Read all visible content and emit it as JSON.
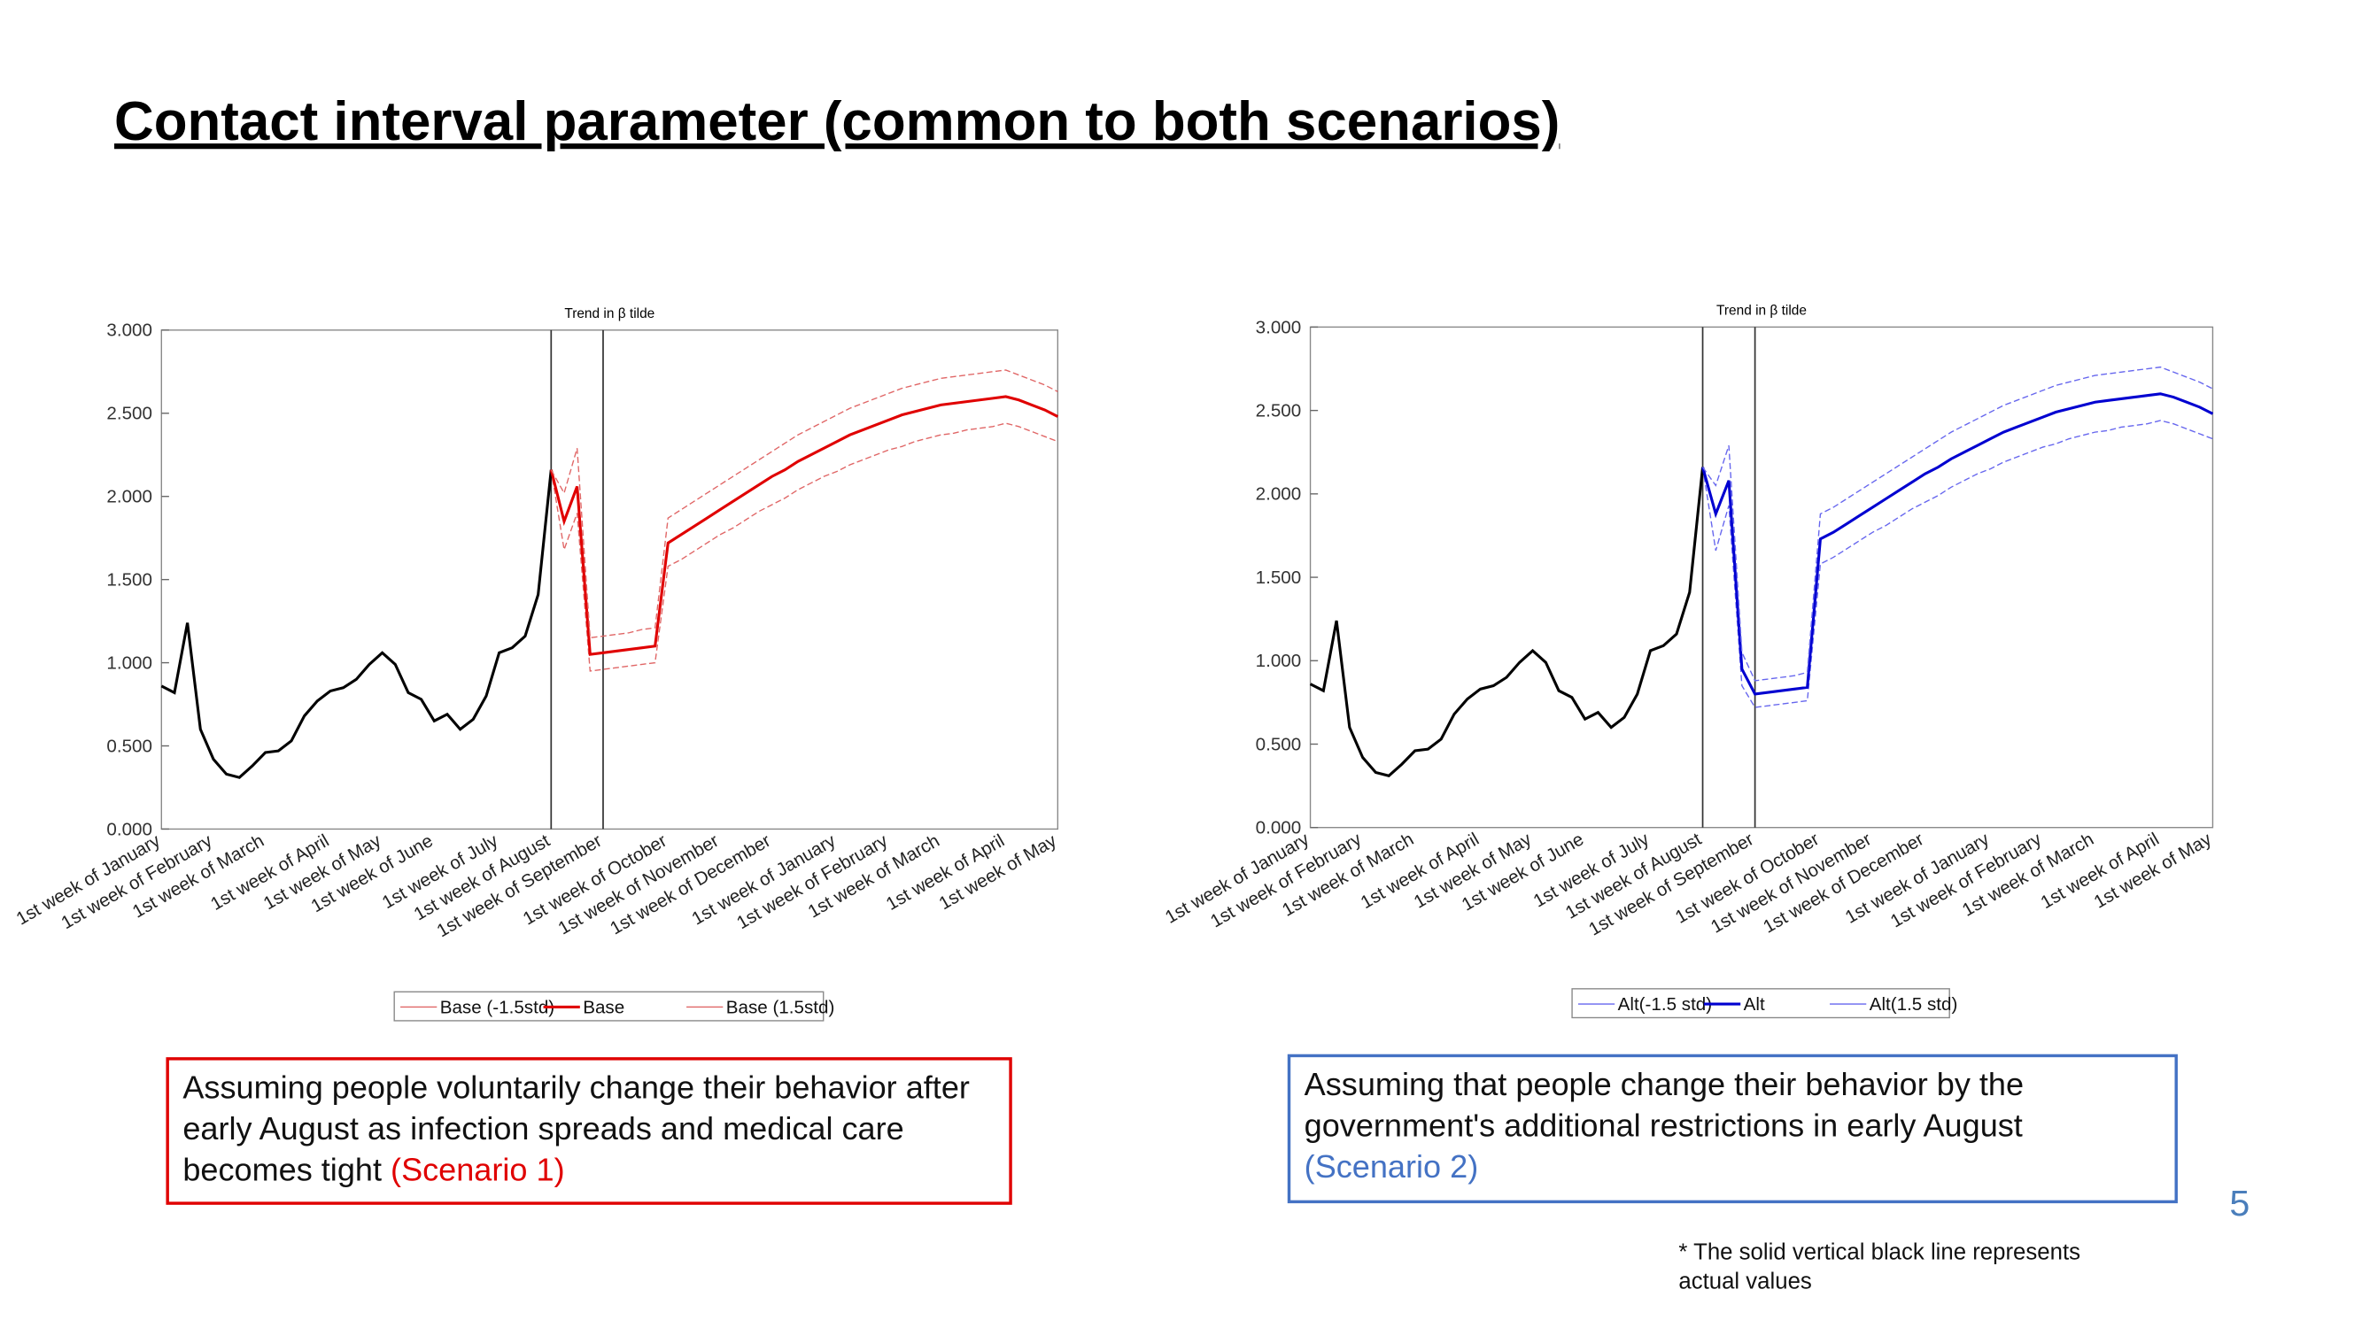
{
  "slide_title": "Contact interval parameter (common to both scenarios)",
  "chart_data": [
    {
      "type": "line",
      "title": "Trend in β tilde",
      "categories": [
        "1st week of January",
        null,
        null,
        null,
        "1st week of February",
        null,
        null,
        null,
        "1st week of March",
        null,
        null,
        null,
        null,
        "1st week of April",
        null,
        null,
        null,
        "1st week of May",
        null,
        null,
        null,
        "1st week of June",
        null,
        null,
        null,
        null,
        "1st week of July",
        null,
        null,
        null,
        "1st week of August",
        null,
        null,
        null,
        "1st week of September",
        null,
        null,
        null,
        null,
        "1st week of October",
        null,
        null,
        null,
        "1st week of November",
        null,
        null,
        null,
        "1st week of December",
        null,
        null,
        null,
        null,
        "1st week of January",
        null,
        null,
        null,
        "1st week of February",
        null,
        null,
        null,
        "1st week of March",
        null,
        null,
        null,
        null,
        "1st week of April",
        null,
        null,
        null,
        "1st week of May"
      ],
      "ylim": [
        0,
        3
      ],
      "yticks": [
        {
          "value": 0,
          "label": "0.000"
        },
        {
          "value": 0.5,
          "label": "0.500"
        },
        {
          "value": 1,
          "label": "1.000"
        },
        {
          "value": 1.5,
          "label": "1.500"
        },
        {
          "value": 2,
          "label": "2.000"
        },
        {
          "value": 2.5,
          "label": "2.500"
        },
        {
          "value": 3,
          "label": "3.000"
        }
      ],
      "vlines": [
        30,
        34
      ],
      "series": [
        {
          "color": "#000000",
          "line_style": "solid",
          "values": [
            0.86,
            0.82,
            1.24,
            0.6,
            0.42,
            0.33,
            0.31,
            0.38,
            0.46,
            0.47,
            0.53,
            0.68,
            0.77,
            0.83,
            0.85,
            0.9,
            0.99,
            1.06,
            0.99,
            0.82,
            0.78,
            0.65,
            0.69,
            0.6,
            0.66,
            0.8,
            1.06,
            1.09,
            1.16,
            1.41,
            2.16,
            null,
            null,
            null,
            null,
            null,
            null,
            null,
            null,
            null,
            null,
            null,
            null,
            null,
            null,
            null,
            null,
            null,
            null,
            null,
            null,
            null,
            null,
            null,
            null,
            null,
            null,
            null,
            null,
            null,
            null,
            null,
            null,
            null,
            null,
            null,
            null,
            null,
            null,
            null
          ]
        },
        {
          "name": "Base (-1.5std)",
          "color": "#e06666",
          "line_style": "dashed",
          "values": [
            null,
            null,
            null,
            null,
            null,
            null,
            null,
            null,
            null,
            null,
            null,
            null,
            null,
            null,
            null,
            null,
            null,
            null,
            null,
            null,
            null,
            null,
            null,
            null,
            null,
            null,
            null,
            null,
            null,
            null,
            2.16,
            1.68,
            1.9,
            0.95,
            0.96,
            0.97,
            0.98,
            0.99,
            1.0,
            1.58,
            1.62,
            1.67,
            1.72,
            1.77,
            1.81,
            1.86,
            1.91,
            1.95,
            1.99,
            2.04,
            2.08,
            2.12,
            2.15,
            2.19,
            2.22,
            2.25,
            2.28,
            2.3,
            2.33,
            2.35,
            2.37,
            2.38,
            2.4,
            2.41,
            2.42,
            2.44,
            2.42,
            2.39,
            2.36,
            2.33
          ]
        },
        {
          "name": "Base",
          "color": "#e00000",
          "line_style": "solid",
          "values": [
            null,
            null,
            null,
            null,
            null,
            null,
            null,
            null,
            null,
            null,
            null,
            null,
            null,
            null,
            null,
            null,
            null,
            null,
            null,
            null,
            null,
            null,
            null,
            null,
            null,
            null,
            null,
            null,
            null,
            null,
            2.16,
            1.85,
            2.06,
            1.05,
            1.06,
            1.07,
            1.08,
            1.09,
            1.1,
            1.72,
            1.77,
            1.82,
            1.87,
            1.92,
            1.97,
            2.02,
            2.07,
            2.12,
            2.16,
            2.21,
            2.25,
            2.29,
            2.33,
            2.37,
            2.4,
            2.43,
            2.46,
            2.49,
            2.51,
            2.53,
            2.55,
            2.56,
            2.57,
            2.58,
            2.59,
            2.6,
            2.58,
            2.55,
            2.52,
            2.48
          ]
        },
        {
          "name": "Base (1.5std)",
          "color": "#e06666",
          "line_style": "dashed",
          "values": [
            null,
            null,
            null,
            null,
            null,
            null,
            null,
            null,
            null,
            null,
            null,
            null,
            null,
            null,
            null,
            null,
            null,
            null,
            null,
            null,
            null,
            null,
            null,
            null,
            null,
            null,
            null,
            null,
            null,
            null,
            2.16,
            2.02,
            2.29,
            1.15,
            1.16,
            1.17,
            1.18,
            1.2,
            1.21,
            1.87,
            1.92,
            1.97,
            2.02,
            2.07,
            2.12,
            2.17,
            2.22,
            2.27,
            2.32,
            2.37,
            2.41,
            2.45,
            2.49,
            2.53,
            2.56,
            2.59,
            2.62,
            2.65,
            2.67,
            2.69,
            2.71,
            2.72,
            2.73,
            2.74,
            2.75,
            2.76,
            2.73,
            2.7,
            2.67,
            2.63
          ]
        }
      ]
    },
    {
      "type": "line",
      "title": "Trend in β tilde",
      "categories": [
        "1st week of January",
        null,
        null,
        null,
        "1st week of February",
        null,
        null,
        null,
        "1st week of March",
        null,
        null,
        null,
        null,
        "1st week of April",
        null,
        null,
        null,
        "1st week of May",
        null,
        null,
        null,
        "1st week of June",
        null,
        null,
        null,
        null,
        "1st week of July",
        null,
        null,
        null,
        "1st week of August",
        null,
        null,
        null,
        "1st week of September",
        null,
        null,
        null,
        null,
        "1st week of October",
        null,
        null,
        null,
        "1st week of November",
        null,
        null,
        null,
        "1st week of December",
        null,
        null,
        null,
        null,
        "1st week of January",
        null,
        null,
        null,
        "1st week of February",
        null,
        null,
        null,
        "1st week of March",
        null,
        null,
        null,
        null,
        "1st week of April",
        null,
        null,
        null,
        "1st week of May"
      ],
      "ylim": [
        0,
        3
      ],
      "yticks": [
        {
          "value": 0,
          "label": "0.000"
        },
        {
          "value": 0.5,
          "label": "0.500"
        },
        {
          "value": 1,
          "label": "1.000"
        },
        {
          "value": 1.5,
          "label": "1.500"
        },
        {
          "value": 2,
          "label": "2.000"
        },
        {
          "value": 2.5,
          "label": "2.500"
        },
        {
          "value": 3,
          "label": "3.000"
        }
      ],
      "vlines": [
        30,
        34
      ],
      "series": [
        {
          "color": "#000000",
          "line_style": "solid",
          "values": [
            0.86,
            0.82,
            1.24,
            0.6,
            0.42,
            0.33,
            0.31,
            0.38,
            0.46,
            0.47,
            0.53,
            0.68,
            0.77,
            0.83,
            0.85,
            0.9,
            0.99,
            1.06,
            0.99,
            0.82,
            0.78,
            0.65,
            0.69,
            0.6,
            0.66,
            0.8,
            1.06,
            1.09,
            1.16,
            1.41,
            2.16,
            null,
            null,
            null,
            null,
            null,
            null,
            null,
            null,
            null,
            null,
            null,
            null,
            null,
            null,
            null,
            null,
            null,
            null,
            null,
            null,
            null,
            null,
            null,
            null,
            null,
            null,
            null,
            null,
            null,
            null,
            null,
            null,
            null,
            null,
            null,
            null,
            null,
            null,
            null
          ]
        },
        {
          "name": "Alt(-1.5 std)",
          "color": "#6666ee",
          "line_style": "dashed",
          "values": [
            null,
            null,
            null,
            null,
            null,
            null,
            null,
            null,
            null,
            null,
            null,
            null,
            null,
            null,
            null,
            null,
            null,
            null,
            null,
            null,
            null,
            null,
            null,
            null,
            null,
            null,
            null,
            null,
            null,
            null,
            2.16,
            1.66,
            1.93,
            0.85,
            0.72,
            0.73,
            0.74,
            0.75,
            0.76,
            1.58,
            1.62,
            1.67,
            1.72,
            1.77,
            1.81,
            1.86,
            1.91,
            1.95,
            1.99,
            2.04,
            2.08,
            2.12,
            2.15,
            2.19,
            2.22,
            2.25,
            2.28,
            2.3,
            2.33,
            2.35,
            2.37,
            2.38,
            2.4,
            2.41,
            2.42,
            2.44,
            2.42,
            2.39,
            2.36,
            2.33
          ]
        },
        {
          "name": "Alt",
          "color": "#0000d0",
          "line_style": "solid",
          "values": [
            null,
            null,
            null,
            null,
            null,
            null,
            null,
            null,
            null,
            null,
            null,
            null,
            null,
            null,
            null,
            null,
            null,
            null,
            null,
            null,
            null,
            null,
            null,
            null,
            null,
            null,
            null,
            null,
            null,
            null,
            2.16,
            1.88,
            2.08,
            0.95,
            0.8,
            0.81,
            0.82,
            0.83,
            0.84,
            1.73,
            1.77,
            1.82,
            1.87,
            1.92,
            1.97,
            2.02,
            2.07,
            2.12,
            2.16,
            2.21,
            2.25,
            2.29,
            2.33,
            2.37,
            2.4,
            2.43,
            2.46,
            2.49,
            2.51,
            2.53,
            2.55,
            2.56,
            2.57,
            2.58,
            2.59,
            2.6,
            2.58,
            2.55,
            2.52,
            2.48
          ]
        },
        {
          "name": "Alt(1.5 std)",
          "color": "#6666ee",
          "line_style": "dashed",
          "values": [
            null,
            null,
            null,
            null,
            null,
            null,
            null,
            null,
            null,
            null,
            null,
            null,
            null,
            null,
            null,
            null,
            null,
            null,
            null,
            null,
            null,
            null,
            null,
            null,
            null,
            null,
            null,
            null,
            null,
            null,
            2.16,
            2.05,
            2.29,
            1.05,
            0.88,
            0.89,
            0.9,
            0.91,
            0.93,
            1.88,
            1.92,
            1.97,
            2.02,
            2.07,
            2.12,
            2.17,
            2.22,
            2.27,
            2.32,
            2.37,
            2.41,
            2.45,
            2.49,
            2.53,
            2.56,
            2.59,
            2.62,
            2.65,
            2.67,
            2.69,
            2.71,
            2.72,
            2.73,
            2.74,
            2.75,
            2.76,
            2.73,
            2.7,
            2.67,
            2.63
          ]
        }
      ]
    }
  ],
  "notes": [
    {
      "text": "Assuming people voluntarily change their behavior after early August as infection spreads and medical care becomes tight",
      "scenario": "(Scenario 1)"
    },
    {
      "text": "Assuming that people change their behavior by the government's additional restrictions in early August",
      "scenario": "(Scenario 2)"
    }
  ],
  "page_number": "5",
  "footnote": "* The solid vertical black line represents actual values"
}
